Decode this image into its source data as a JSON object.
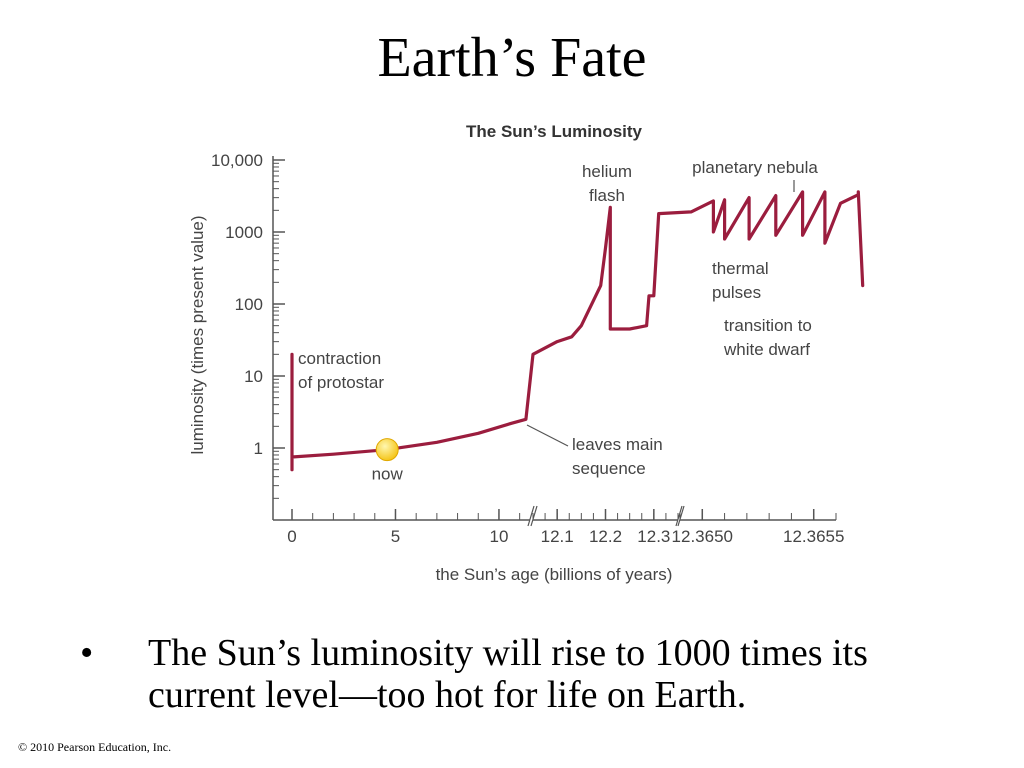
{
  "slide": {
    "title": "Earth’s Fate",
    "bullet_symbol": "•",
    "bullet_text": "The Sun’s luminosity will rise to 1000 times its current level—too hot for life on Earth.",
    "copyright": "© 2010 Pearson Education, Inc."
  },
  "colors": {
    "curve": "#9b1d3e",
    "axis": "#555555",
    "text": "#444444",
    "sun": "#f5c518"
  },
  "chart_data": {
    "type": "line",
    "title": "The Sun’s Luminosity",
    "xlabel": "the Sun’s age (billions of years)",
    "ylabel": "luminosity (times present value)",
    "y_scale": "log",
    "ylim": [
      0.1,
      10000
    ],
    "grid": false,
    "y_ticks": [
      {
        "value": 1,
        "label": "1"
      },
      {
        "value": 10,
        "label": "10"
      },
      {
        "value": 100,
        "label": "100"
      },
      {
        "value": 1000,
        "label": "1000"
      },
      {
        "value": 10000,
        "label": "10,000"
      }
    ],
    "x_segments": [
      {
        "range": [
          0,
          11.5
        ],
        "ticks": [
          {
            "value": 0,
            "label": "0"
          },
          {
            "value": 5,
            "label": "5"
          },
          {
            "value": 10,
            "label": "10"
          }
        ],
        "minor_step": 1
      },
      {
        "range": [
          12.05,
          12.35
        ],
        "ticks": [
          {
            "value": 12.1,
            "label": "12.1"
          },
          {
            "value": 12.2,
            "label": "12.2"
          },
          {
            "value": 12.3,
            "label": "12.3"
          }
        ],
        "minor_step": 0.025
      },
      {
        "range": [
          12.3649,
          12.3656
        ],
        "ticks": [
          {
            "value": 12.365,
            "label": "12.3650"
          },
          {
            "value": 12.3655,
            "label": "12.3655"
          }
        ],
        "minor_step": 0.0001
      }
    ],
    "series": [
      {
        "points": [
          [
            0,
            20
          ],
          [
            0,
            0.5
          ],
          [
            0,
            0.75
          ],
          [
            2,
            0.82
          ],
          [
            4.6,
            0.95
          ],
          [
            7,
            1.2
          ],
          [
            9,
            1.6
          ],
          [
            10.6,
            2.2
          ],
          [
            11.3,
            2.5
          ],
          [
            12.05,
            20
          ],
          [
            12.1,
            30
          ],
          [
            12.13,
            35
          ],
          [
            12.15,
            50
          ],
          [
            12.19,
            180
          ],
          [
            12.2,
            600
          ],
          [
            12.21,
            2200
          ],
          [
            12.21,
            45
          ],
          [
            12.25,
            45
          ],
          [
            12.285,
            50
          ],
          [
            12.29,
            130
          ],
          [
            12.3,
            130
          ],
          [
            12.31,
            1800
          ],
          [
            12.36495,
            1900
          ],
          [
            12.36505,
            2700
          ],
          [
            12.36505,
            1000
          ],
          [
            12.3651,
            2800
          ],
          [
            12.3651,
            800
          ],
          [
            12.36521,
            3000
          ],
          [
            12.36521,
            800
          ],
          [
            12.36533,
            3200
          ],
          [
            12.36533,
            900
          ],
          [
            12.36545,
            3600
          ],
          [
            12.36545,
            900
          ],
          [
            12.36555,
            3600
          ],
          [
            12.36555,
            700
          ],
          [
            12.36562,
            2500
          ],
          [
            12.3657,
            3300
          ],
          [
            12.3657,
            3600
          ],
          [
            12.36572,
            180
          ]
        ]
      }
    ],
    "current_point": {
      "x": 4.6,
      "y": 0.95,
      "label": "now"
    },
    "annotations": [
      {
        "lines": [
          "contraction",
          "of protostar"
        ]
      },
      {
        "lines": [
          "leaves main",
          "sequence"
        ]
      },
      {
        "lines": [
          "helium",
          "flash"
        ]
      },
      {
        "lines": [
          "planetary nebula"
        ]
      },
      {
        "lines": [
          "thermal",
          "pulses"
        ]
      },
      {
        "lines": [
          "transition to",
          "white dwarf"
        ]
      }
    ]
  }
}
